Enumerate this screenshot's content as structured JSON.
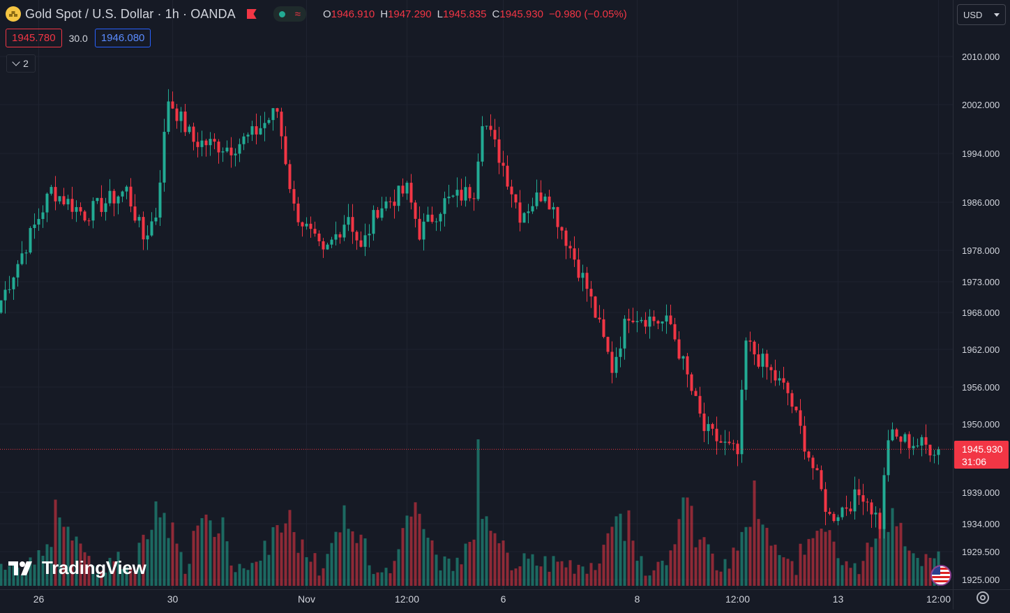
{
  "header": {
    "symbol_title": "Gold Spot / U.S. Dollar · 1h · OANDA",
    "ohlc": [
      {
        "key": "O",
        "value": "1946.910"
      },
      {
        "key": "H",
        "value": "1947.290"
      },
      {
        "key": "L",
        "value": "1945.835"
      },
      {
        "key": "C",
        "value": "1945.930"
      }
    ],
    "change": "−0.980 (−0.05%)",
    "colors": {
      "up": "#22ab94",
      "down": "#f23645",
      "accent": "#2962ff"
    }
  },
  "quote": {
    "bid": "1945.780",
    "spread": "30.0",
    "ask": "1946.080"
  },
  "indicators_toggle": {
    "count": "2"
  },
  "currency_select": {
    "value": "USD"
  },
  "last_price_tag": {
    "price": "1945.930",
    "countdown": "31:06"
  },
  "watermark": {
    "text": "TradingView"
  },
  "chart_data": {
    "type": "candlestick",
    "interval": "1h",
    "y_ticks": [
      "2010.000",
      "2002.000",
      "1994.000",
      "1986.000",
      "1978.000",
      "1973.000",
      "1968.000",
      "1962.000",
      "1956.000",
      "1950.000",
      "1939.000",
      "1934.000",
      "1929.500",
      "1925.000"
    ],
    "y_tick_values": [
      2010,
      2002,
      1994,
      1986,
      1978,
      1973,
      1968,
      1962,
      1956,
      1950,
      1939,
      1934,
      1929.5,
      1925
    ],
    "x_ticks": [
      "26",
      "30",
      "Nov",
      "12:00",
      "6",
      "8",
      "12:00",
      "13",
      "12:00"
    ],
    "x_tick_bar_index": [
      9,
      41,
      73,
      97,
      120,
      152,
      176,
      200,
      224
    ],
    "last_close": 1945.93,
    "segments": [
      {
        "from_bar": 0,
        "to_bar": 12,
        "start": 1970,
        "end": 1988
      },
      {
        "from_bar": 12,
        "to_bar": 20,
        "start": 1988,
        "end": 1984
      },
      {
        "from_bar": 20,
        "to_bar": 30,
        "start": 1984,
        "end": 1988
      },
      {
        "from_bar": 30,
        "to_bar": 34,
        "start": 1988,
        "end": 1980
      },
      {
        "from_bar": 34,
        "to_bar": 37,
        "start": 1980,
        "end": 1984
      },
      {
        "from_bar": 37,
        "to_bar": 40,
        "start": 1984,
        "end": 2003
      },
      {
        "from_bar": 40,
        "to_bar": 46,
        "start": 2003,
        "end": 1996
      },
      {
        "from_bar": 46,
        "to_bar": 55,
        "start": 1996,
        "end": 1995
      },
      {
        "from_bar": 55,
        "to_bar": 60,
        "start": 1995,
        "end": 1997
      },
      {
        "from_bar": 60,
        "to_bar": 66,
        "start": 1997,
        "end": 2001
      },
      {
        "from_bar": 66,
        "to_bar": 70,
        "start": 2001,
        "end": 1985
      },
      {
        "from_bar": 70,
        "to_bar": 77,
        "start": 1985,
        "end": 1977
      },
      {
        "from_bar": 77,
        "to_bar": 83,
        "start": 1977,
        "end": 1984
      },
      {
        "from_bar": 83,
        "to_bar": 86,
        "start": 1984,
        "end": 1978
      },
      {
        "from_bar": 86,
        "to_bar": 90,
        "start": 1978,
        "end": 1985
      },
      {
        "from_bar": 90,
        "to_bar": 97,
        "start": 1985,
        "end": 1988
      },
      {
        "from_bar": 97,
        "to_bar": 100,
        "start": 1988,
        "end": 1981
      },
      {
        "from_bar": 100,
        "to_bar": 106,
        "start": 1981,
        "end": 1986
      },
      {
        "from_bar": 106,
        "to_bar": 113,
        "start": 1986,
        "end": 1988
      },
      {
        "from_bar": 113,
        "to_bar": 115,
        "start": 1988,
        "end": 2000
      },
      {
        "from_bar": 115,
        "to_bar": 120,
        "start": 2000,
        "end": 1992
      },
      {
        "from_bar": 120,
        "to_bar": 124,
        "start": 1992,
        "end": 1984
      },
      {
        "from_bar": 124,
        "to_bar": 130,
        "start": 1984,
        "end": 1988
      },
      {
        "from_bar": 130,
        "to_bar": 140,
        "start": 1988,
        "end": 1972
      },
      {
        "from_bar": 140,
        "to_bar": 146,
        "start": 1972,
        "end": 1959
      },
      {
        "from_bar": 146,
        "to_bar": 150,
        "start": 1959,
        "end": 1968
      },
      {
        "from_bar": 150,
        "to_bar": 160,
        "start": 1968,
        "end": 1966
      },
      {
        "from_bar": 160,
        "to_bar": 168,
        "start": 1966,
        "end": 1949
      },
      {
        "from_bar": 168,
        "to_bar": 176,
        "start": 1949,
        "end": 1945
      },
      {
        "from_bar": 176,
        "to_bar": 178,
        "start": 1945,
        "end": 1963
      },
      {
        "from_bar": 178,
        "to_bar": 188,
        "start": 1963,
        "end": 1955
      },
      {
        "from_bar": 188,
        "to_bar": 198,
        "start": 1955,
        "end": 1935
      },
      {
        "from_bar": 198,
        "to_bar": 206,
        "start": 1935,
        "end": 1939
      },
      {
        "from_bar": 206,
        "to_bar": 210,
        "start": 1939,
        "end": 1934
      },
      {
        "from_bar": 210,
        "to_bar": 212,
        "start": 1934,
        "end": 1948
      },
      {
        "from_bar": 212,
        "to_bar": 224,
        "start": 1948,
        "end": 1945.93
      }
    ],
    "volume_spike_bars": [
      14,
      38,
      50,
      67,
      83,
      99,
      115,
      148,
      164,
      180,
      196,
      212
    ]
  }
}
